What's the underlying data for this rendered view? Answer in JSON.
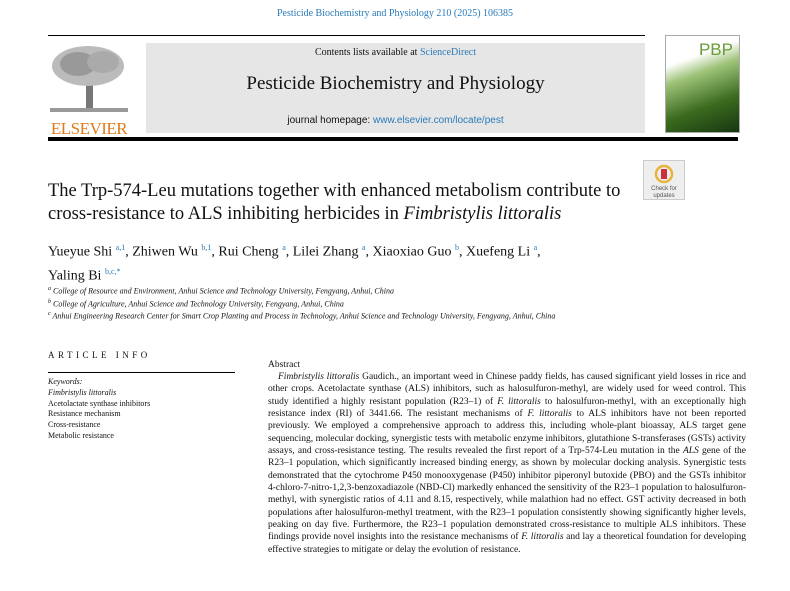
{
  "header": {
    "journal_ref": "Pesticide Biochemistry and Physiology 210 (2025) 106385",
    "contents_prefix": "Contents lists available at ",
    "contents_link": "ScienceDirect",
    "journal_title": "Pesticide Biochemistry and Physiology",
    "homepage_prefix": "journal homepage: ",
    "homepage_link": "www.elsevier.com/locate/pest",
    "publisher": "ELSEVIER",
    "cover_text": "PBP"
  },
  "badge": {
    "label": "Check for updates"
  },
  "article": {
    "title_part1": "The Trp-574-Leu mutations together with enhanced metabolism contribute to cross-resistance to ALS inhibiting herbicides in ",
    "title_italic": "Fimbristylis littoralis",
    "authors": [
      {
        "name": "Yueyue Shi",
        "sup": "a,1"
      },
      {
        "name": "Zhiwen Wu",
        "sup": "b,1"
      },
      {
        "name": "Rui Cheng",
        "sup": "a"
      },
      {
        "name": "Lilei Zhang",
        "sup": "a"
      },
      {
        "name": "Xiaoxiao Guo",
        "sup": "b"
      },
      {
        "name": "Xuefeng Li",
        "sup": "a"
      },
      {
        "name": "Yaling Bi",
        "sup": "b,c,*"
      }
    ],
    "affiliations": [
      {
        "key": "a",
        "text": "College of Resource and Environment, Anhui Science and Technology University, Fengyang, Anhui, China"
      },
      {
        "key": "b",
        "text": "College of Agriculture, Anhui Science and Technology University, Fengyang, Anhui, China"
      },
      {
        "key": "c",
        "text": "Anhui Engineering Research Center for Smart Crop Planting and Process in Technology, Anhui Science and Technology University, Fengyang, Anhui, China"
      }
    ]
  },
  "article_info": {
    "heading": "ARTICLE INFO",
    "keywords_label": "Keywords:",
    "keywords": [
      "Fimbristylis littoralis",
      "Acetolactate synthase inhibitors",
      "Resistance mechanism",
      "Cross-resistance",
      "Metabolic resistance"
    ]
  },
  "abstract": {
    "heading": "Abstract",
    "text": "Fimbristylis littoralis Gaudich., an important weed in Chinese paddy fields, has caused significant yield losses in rice and other crops. Acetolactate synthase (ALS) inhibitors, such as halosulfuron-methyl, are widely used for weed control. This study identified a highly resistant population (R23–1) of F. littoralis to halosulfuron-methyl, with an exceptionally high resistance index (RI) of 3441.66. The resistant mechanisms of F. littoralis to ALS inhibitors have not been reported previously. We employed a comprehensive approach to address this, including whole-plant bioassay, ALS target gene sequencing, molecular docking, synergistic tests with metabolic enzyme inhibitors, glutathione S-transferases (GSTs) activity assays, and cross-resistance testing. The results revealed the first report of a Trp-574-Leu mutation in the ALS gene of the R23–1 population, which significantly increased binding energy, as shown by molecular docking analysis. Synergistic tests demonstrated that the cytochrome P450 monooxygenase (P450) inhibitor piperonyl butoxide (PBO) and the GSTs inhibitor 4-chloro-7-nitro-1,2,3-benzoxadiazole (NBD-Cl) markedly enhanced the sensitivity of the R23–1 population to halosulfuron-methyl, with synergistic ratios of 4.11 and 8.15, respectively, while malathion had no effect. GST activity decreased in both populations after halosulfuron-methyl treatment, with the R23–1 population consistently showing significantly higher levels, peaking on day five. Furthermore, the R23–1 population demonstrated cross-resistance to multiple ALS inhibitors. These findings provide novel insights into the resistance mechanisms of F. littoralis and lay a theoretical foundation for developing effective strategies to mitigate or delay the evolution of resistance."
  },
  "colors": {
    "link": "#2a7ab8",
    "elsevier": "#e07b1a",
    "header_box": "#e6e6e6"
  }
}
